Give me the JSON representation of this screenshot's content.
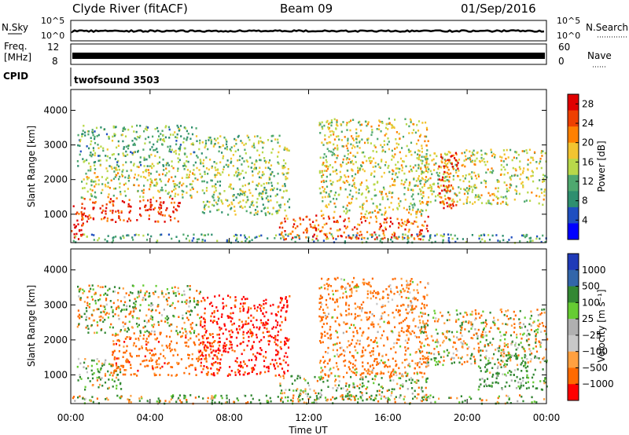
{
  "header": {
    "station": "Clyde River (fitACF)",
    "beam": "Beam 09",
    "date": "01/Sep/2016"
  },
  "side_labels": {
    "nsky": "N.Sky",
    "nsky_ticks": [
      "10^5",
      "10^0"
    ],
    "nsearch": "N.Search",
    "freq_line1": "Freq.",
    "freq_line2": "[MHz]",
    "freq_ticks": [
      "12",
      "8"
    ],
    "nave": "Nave",
    "nave_ticks": [
      "60",
      "0"
    ],
    "cpid": "CPID",
    "cpid_value": "twofsound 3503"
  },
  "colors": {
    "power": [
      "#0000ff",
      "#1f4fc0",
      "#2f8f6f",
      "#4fa86f",
      "#b8d84a",
      "#f2c430",
      "#ff8000",
      "#ee4000",
      "#e00000"
    ],
    "velocity": [
      "#ff0000",
      "#ff6a00",
      "#ffa040",
      "#c8c8c8",
      "#b0b0b0",
      "#66cc33",
      "#338833",
      "#3366aa",
      "#1f3ab8"
    ]
  },
  "chart_data": [
    {
      "type": "heatmap",
      "title": "",
      "xlabel": "Time UT",
      "ylabel": "Slant Range [km]",
      "x_ticks": [
        "00:00",
        "04:00",
        "08:00",
        "12:00",
        "16:00",
        "20:00",
        "00:00"
      ],
      "y_ticks": [
        1000,
        2000,
        3000,
        4000
      ],
      "ylim": [
        180,
        4600
      ],
      "xlim_hours": [
        0,
        24
      ],
      "colorbar": {
        "label": "Power [dB]",
        "ticks": [
          4,
          8,
          12,
          16,
          20,
          24,
          28
        ],
        "range": [
          0,
          30
        ]
      },
      "scatter_regions": [
        {
          "t0": 0.0,
          "t1": 0.6,
          "r0": 200,
          "r1": 1400,
          "value": 28
        },
        {
          "t0": 0.5,
          "t1": 5.5,
          "r0": 800,
          "r1": 1500,
          "value": 26
        },
        {
          "t0": 0.5,
          "t1": 6.5,
          "r0": 1500,
          "r1": 2400,
          "value": 16
        },
        {
          "t0": 0.3,
          "t1": 6.5,
          "r0": 2400,
          "r1": 3600,
          "value": 12
        },
        {
          "t0": 0.0,
          "t1": 24.0,
          "r0": 200,
          "r1": 450,
          "value": 10
        },
        {
          "t0": 6.5,
          "t1": 11.0,
          "r0": 1000,
          "r1": 3300,
          "value": 14
        },
        {
          "t0": 10.5,
          "t1": 18.0,
          "r0": 300,
          "r1": 1000,
          "value": 24
        },
        {
          "t0": 12.5,
          "t1": 18.0,
          "r0": 1000,
          "r1": 3800,
          "value": 16
        },
        {
          "t0": 17.5,
          "t1": 24.0,
          "r0": 1300,
          "r1": 2900,
          "value": 16
        },
        {
          "t0": 18.5,
          "t1": 19.5,
          "r0": 1200,
          "r1": 2800,
          "value": 26
        }
      ]
    },
    {
      "type": "heatmap",
      "title": "",
      "xlabel": "Time UT",
      "ylabel": "Slant Range [km]",
      "x_ticks": [
        "00:00",
        "04:00",
        "08:00",
        "12:00",
        "16:00",
        "20:00",
        "00:00"
      ],
      "y_ticks": [
        1000,
        2000,
        3000,
        4000
      ],
      "ylim": [
        180,
        4600
      ],
      "xlim_hours": [
        0,
        24
      ],
      "colorbar": {
        "label": "Velocity [m s⁻¹]",
        "ticks": [
          "1000",
          "500",
          "100",
          "25",
          "−25",
          "−100",
          "−500",
          "−1000"
        ]
      },
      "scatter_regions": [
        {
          "t0": 0.3,
          "t1": 2.5,
          "r0": 600,
          "r1": 1500,
          "value": 100
        },
        {
          "t0": 2.0,
          "t1": 7.5,
          "r0": 1000,
          "r1": 2200,
          "value": -300
        },
        {
          "t0": 0.3,
          "t1": 6.5,
          "r0": 2200,
          "r1": 3600,
          "value": 0
        },
        {
          "t0": 0.0,
          "t1": 24.0,
          "r0": 200,
          "r1": 450,
          "value": 50
        },
        {
          "t0": 6.5,
          "t1": 11.0,
          "r0": 1000,
          "r1": 3300,
          "value": -600
        },
        {
          "t0": 10.5,
          "t1": 18.0,
          "r0": 300,
          "r1": 1000,
          "value": 80
        },
        {
          "t0": 12.5,
          "t1": 18.0,
          "r0": 1000,
          "r1": 3800,
          "value": -200
        },
        {
          "t0": 17.5,
          "t1": 24.0,
          "r0": 1300,
          "r1": 2900,
          "value": 0
        },
        {
          "t0": 20.5,
          "t1": 24.0,
          "r0": 600,
          "r1": 1600,
          "value": 200
        }
      ]
    }
  ]
}
